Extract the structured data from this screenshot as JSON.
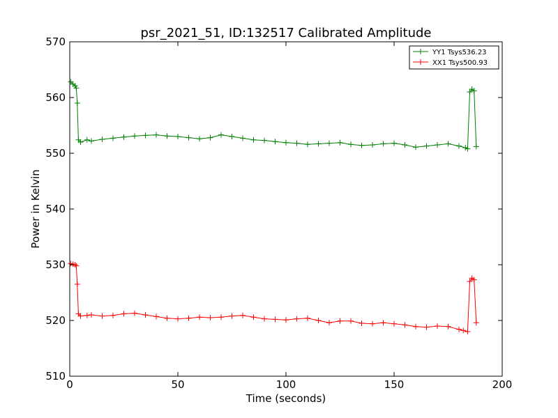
{
  "chart_data": {
    "type": "line",
    "title": "psr_2021_51, ID:132517 Calibrated Amplitude",
    "xlabel": "Time (seconds)",
    "ylabel": "Power in Kelvin",
    "xlim": [
      0,
      200
    ],
    "ylim": [
      510,
      570
    ],
    "xticks": [
      0,
      50,
      100,
      150,
      200
    ],
    "yticks": [
      510,
      520,
      530,
      540,
      550,
      560,
      570
    ],
    "grid": false,
    "legend_position": "top-right",
    "marker": "+",
    "series": [
      {
        "name": "YY1 Tsys536.23",
        "color": "#008000",
        "points": [
          [
            0.5,
            562.8
          ],
          [
            1.5,
            562.4
          ],
          [
            2.5,
            562.1
          ],
          [
            3.0,
            561.7
          ],
          [
            3.5,
            559.0
          ],
          [
            4.0,
            552.4
          ],
          [
            5,
            552.0
          ],
          [
            8,
            552.4
          ],
          [
            10,
            552.2
          ],
          [
            15,
            552.5
          ],
          [
            20,
            552.7
          ],
          [
            25,
            552.9
          ],
          [
            30,
            553.1
          ],
          [
            35,
            553.2
          ],
          [
            40,
            553.3
          ],
          [
            45,
            553.1
          ],
          [
            50,
            553.0
          ],
          [
            55,
            552.8
          ],
          [
            60,
            552.6
          ],
          [
            65,
            552.8
          ],
          [
            70,
            553.3
          ],
          [
            75,
            553.0
          ],
          [
            80,
            552.7
          ],
          [
            85,
            552.4
          ],
          [
            90,
            552.3
          ],
          [
            95,
            552.1
          ],
          [
            100,
            551.9
          ],
          [
            105,
            551.8
          ],
          [
            110,
            551.6
          ],
          [
            115,
            551.7
          ],
          [
            120,
            551.8
          ],
          [
            125,
            551.9
          ],
          [
            130,
            551.6
          ],
          [
            135,
            551.4
          ],
          [
            140,
            551.5
          ],
          [
            145,
            551.7
          ],
          [
            150,
            551.8
          ],
          [
            155,
            551.5
          ],
          [
            160,
            551.1
          ],
          [
            165,
            551.3
          ],
          [
            170,
            551.5
          ],
          [
            175,
            551.7
          ],
          [
            180,
            551.3
          ],
          [
            183,
            551.0
          ],
          [
            184,
            550.8
          ],
          [
            185,
            561.0
          ],
          [
            186,
            561.5
          ],
          [
            187,
            561.2
          ],
          [
            188,
            551.2
          ]
        ]
      },
      {
        "name": "XX1 Tsys500.93",
        "color": "#ff0000",
        "points": [
          [
            0.5,
            530.2
          ],
          [
            1.5,
            530.1
          ],
          [
            2.5,
            530.0
          ],
          [
            3.0,
            529.8
          ],
          [
            3.5,
            526.5
          ],
          [
            4.0,
            521.2
          ],
          [
            5,
            520.8
          ],
          [
            8,
            520.9
          ],
          [
            10,
            521.0
          ],
          [
            15,
            520.8
          ],
          [
            20,
            520.9
          ],
          [
            25,
            521.2
          ],
          [
            30,
            521.3
          ],
          [
            35,
            521.0
          ],
          [
            40,
            520.7
          ],
          [
            45,
            520.4
          ],
          [
            50,
            520.3
          ],
          [
            55,
            520.4
          ],
          [
            60,
            520.6
          ],
          [
            65,
            520.5
          ],
          [
            70,
            520.6
          ],
          [
            75,
            520.8
          ],
          [
            80,
            520.9
          ],
          [
            85,
            520.6
          ],
          [
            90,
            520.3
          ],
          [
            95,
            520.2
          ],
          [
            100,
            520.1
          ],
          [
            105,
            520.3
          ],
          [
            110,
            520.4
          ],
          [
            115,
            520.0
          ],
          [
            120,
            519.6
          ],
          [
            125,
            519.9
          ],
          [
            130,
            519.9
          ],
          [
            135,
            519.5
          ],
          [
            140,
            519.4
          ],
          [
            145,
            519.6
          ],
          [
            150,
            519.4
          ],
          [
            155,
            519.2
          ],
          [
            160,
            518.9
          ],
          [
            165,
            518.8
          ],
          [
            170,
            519.0
          ],
          [
            175,
            518.9
          ],
          [
            180,
            518.4
          ],
          [
            182,
            518.2
          ],
          [
            184,
            518.0
          ],
          [
            185,
            527.0
          ],
          [
            186,
            527.6
          ],
          [
            187,
            527.3
          ],
          [
            188,
            519.6
          ]
        ]
      }
    ]
  }
}
